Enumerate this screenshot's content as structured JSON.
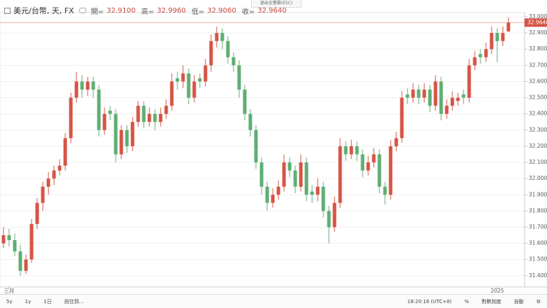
{
  "header": {
    "symbol": "美元/台幣, 天, FX",
    "open_label": "開=",
    "open": "32.9100",
    "high_label": "高=",
    "high": "32.9960",
    "low_label": "低=",
    "low": "32.9060",
    "close_label": "收=",
    "close": "32.9640"
  },
  "fullscreen_exit": "退出全螢幕(ESC)",
  "chart_data": {
    "type": "candlestick",
    "up_color": "#d65445",
    "down_color": "#5fae73",
    "categories": [
      null,
      "三月",
      null,
      null,
      null,
      null,
      null,
      null,
      null,
      null,
      null,
      null,
      null,
      null,
      null,
      null,
      null,
      null,
      null,
      null,
      null,
      null,
      null,
      null,
      null,
      null,
      null,
      null,
      null,
      null,
      null,
      null,
      null,
      null,
      null,
      null,
      null,
      null,
      null,
      null,
      null,
      null,
      null,
      null,
      null,
      null,
      null,
      null,
      null,
      null,
      null,
      null,
      null,
      null,
      null,
      null,
      null,
      null,
      null,
      null,
      null,
      null,
      null,
      null,
      null,
      null,
      null,
      null,
      null,
      null,
      null,
      null,
      null,
      null,
      null,
      null,
      null,
      null,
      null,
      null,
      null,
      null,
      null,
      null,
      null,
      null,
      null,
      null,
      "2025",
      null,
      null
    ],
    "candles": [
      [
        31.6,
        31.7,
        31.57,
        31.65
      ],
      [
        31.65,
        31.69,
        31.58,
        31.62
      ],
      [
        31.62,
        31.66,
        31.52,
        31.55
      ],
      [
        31.55,
        31.59,
        31.4,
        31.43
      ],
      [
        31.43,
        31.53,
        31.41,
        31.5
      ],
      [
        31.5,
        31.75,
        31.48,
        31.72
      ],
      [
        31.72,
        31.88,
        31.69,
        31.85
      ],
      [
        31.85,
        31.98,
        31.8,
        31.95
      ],
      [
        31.95,
        32.04,
        31.9,
        32.0
      ],
      [
        32.0,
        32.08,
        31.96,
        32.05
      ],
      [
        32.05,
        32.12,
        32.02,
        32.08
      ],
      [
        32.08,
        32.28,
        32.05,
        32.25
      ],
      [
        32.25,
        32.53,
        32.22,
        32.5
      ],
      [
        32.5,
        32.66,
        32.47,
        32.6
      ],
      [
        32.6,
        32.64,
        32.5,
        32.55
      ],
      [
        32.55,
        32.63,
        32.51,
        32.6
      ],
      [
        32.6,
        32.63,
        32.5,
        32.55
      ],
      [
        32.55,
        32.58,
        32.26,
        32.3
      ],
      [
        32.3,
        32.44,
        32.27,
        32.4
      ],
      [
        32.42,
        32.45,
        32.36,
        32.4
      ],
      [
        32.4,
        32.43,
        32.1,
        32.15
      ],
      [
        32.15,
        32.33,
        32.12,
        32.3
      ],
      [
        32.3,
        32.33,
        32.16,
        32.2
      ],
      [
        32.2,
        32.38,
        32.17,
        32.35
      ],
      [
        32.35,
        32.48,
        32.32,
        32.45
      ],
      [
        32.45,
        32.48,
        32.31,
        32.35
      ],
      [
        32.35,
        32.44,
        32.32,
        32.4
      ],
      [
        32.4,
        32.43,
        32.3,
        32.35
      ],
      [
        32.35,
        32.44,
        32.32,
        32.4
      ],
      [
        32.4,
        32.49,
        32.37,
        32.45
      ],
      [
        32.45,
        32.65,
        32.42,
        32.6
      ],
      [
        32.62,
        32.66,
        32.55,
        32.6
      ],
      [
        32.6,
        32.7,
        32.56,
        32.65
      ],
      [
        32.65,
        32.68,
        32.46,
        32.5
      ],
      [
        32.5,
        32.64,
        32.47,
        32.6
      ],
      [
        32.62,
        32.65,
        32.56,
        32.6
      ],
      [
        32.6,
        32.74,
        32.57,
        32.7
      ],
      [
        32.7,
        32.89,
        32.66,
        32.85
      ],
      [
        32.85,
        32.94,
        32.81,
        32.9
      ],
      [
        32.9,
        32.93,
        32.8,
        32.85
      ],
      [
        32.85,
        32.88,
        32.71,
        32.75
      ],
      [
        32.75,
        32.78,
        32.66,
        32.7
      ],
      [
        32.7,
        32.73,
        32.5,
        32.55
      ],
      [
        32.55,
        32.58,
        32.36,
        32.4
      ],
      [
        32.4,
        32.43,
        32.26,
        32.3
      ],
      [
        32.3,
        32.33,
        32.06,
        32.1
      ],
      [
        32.1,
        32.13,
        31.9,
        31.95
      ],
      [
        31.95,
        31.98,
        31.8,
        31.85
      ],
      [
        31.85,
        31.94,
        31.82,
        31.9
      ],
      [
        31.9,
        31.99,
        31.87,
        31.95
      ],
      [
        31.95,
        32.15,
        31.92,
        32.1
      ],
      [
        32.1,
        32.13,
        32.01,
        32.05
      ],
      [
        32.05,
        32.08,
        31.91,
        31.95
      ],
      [
        31.95,
        32.15,
        31.92,
        32.1
      ],
      [
        32.1,
        32.13,
        31.86,
        31.9
      ],
      [
        31.92,
        31.96,
        31.85,
        31.9
      ],
      [
        31.9,
        32.0,
        31.86,
        31.95
      ],
      [
        31.95,
        31.98,
        31.76,
        31.8
      ],
      [
        31.8,
        31.83,
        31.6,
        31.7
      ],
      [
        31.7,
        31.89,
        31.67,
        31.85
      ],
      [
        31.85,
        32.25,
        31.82,
        32.2
      ],
      [
        32.2,
        32.23,
        32.11,
        32.15
      ],
      [
        32.15,
        32.24,
        32.12,
        32.2
      ],
      [
        32.2,
        32.23,
        32.11,
        32.15
      ],
      [
        32.15,
        32.18,
        32.01,
        32.05
      ],
      [
        32.05,
        32.14,
        32.02,
        32.1
      ],
      [
        32.1,
        32.19,
        32.07,
        32.15
      ],
      [
        32.15,
        32.18,
        31.91,
        31.95
      ],
      [
        31.95,
        31.98,
        31.84,
        31.9
      ],
      [
        31.9,
        32.24,
        31.87,
        32.2
      ],
      [
        32.2,
        32.29,
        32.17,
        32.25
      ],
      [
        32.25,
        32.54,
        32.22,
        32.5
      ],
      [
        32.52,
        32.56,
        32.46,
        32.5
      ],
      [
        32.5,
        32.59,
        32.47,
        32.55
      ],
      [
        32.55,
        32.58,
        32.46,
        32.5
      ],
      [
        32.5,
        32.59,
        32.47,
        32.55
      ],
      [
        32.55,
        32.58,
        32.41,
        32.45
      ],
      [
        32.45,
        32.64,
        32.42,
        32.6
      ],
      [
        32.6,
        32.63,
        32.36,
        32.4
      ],
      [
        32.4,
        32.49,
        32.37,
        32.45
      ],
      [
        32.45,
        32.54,
        32.42,
        32.5
      ],
      [
        32.48,
        32.53,
        32.45,
        32.5
      ],
      [
        32.52,
        32.55,
        32.46,
        32.5
      ],
      [
        32.5,
        32.74,
        32.47,
        32.7
      ],
      [
        32.7,
        32.79,
        32.67,
        32.75
      ],
      [
        32.77,
        32.8,
        32.71,
        32.75
      ],
      [
        32.75,
        32.84,
        32.72,
        32.8
      ],
      [
        32.8,
        32.94,
        32.77,
        32.9
      ],
      [
        32.9,
        32.93,
        32.72,
        32.85
      ],
      [
        32.85,
        32.94,
        32.82,
        32.9
      ],
      [
        32.91,
        32.996,
        32.906,
        32.964
      ]
    ],
    "ylim": [
      31.33,
      33.026
    ],
    "yticks": [
      {
        "value": 31.4,
        "label": "31.4000"
      },
      {
        "value": 31.5,
        "label": "31.5000"
      },
      {
        "value": 31.6,
        "label": "31.6000"
      },
      {
        "value": 31.7,
        "label": "31.7000"
      },
      {
        "value": 31.8,
        "label": "31.8000"
      },
      {
        "value": 31.9,
        "label": "31.9000"
      },
      {
        "value": 32.0,
        "label": "32.0000"
      },
      {
        "value": 32.1,
        "label": "32.1000"
      },
      {
        "value": 32.2,
        "label": "32.2000"
      },
      {
        "value": 32.3,
        "label": "32.3000"
      },
      {
        "value": 32.4,
        "label": "32.4000"
      },
      {
        "value": 32.5,
        "label": "32.5000"
      },
      {
        "value": 32.6,
        "label": "32.6000"
      },
      {
        "value": 32.7,
        "label": "32.7000"
      },
      {
        "value": 32.8,
        "label": "32.8000"
      },
      {
        "value": 32.9,
        "label": "32.9000"
      },
      {
        "value": 33.0,
        "label": "33.0000"
      }
    ],
    "last_price": {
      "value": 32.964,
      "label": "32.9640"
    }
  },
  "toolbar": {
    "left": [
      "5y",
      "1y",
      "1日",
      "前往到..."
    ],
    "right": [
      "18:20:16 (UTC+8)",
      "%",
      "對數刻度",
      "自動"
    ]
  }
}
